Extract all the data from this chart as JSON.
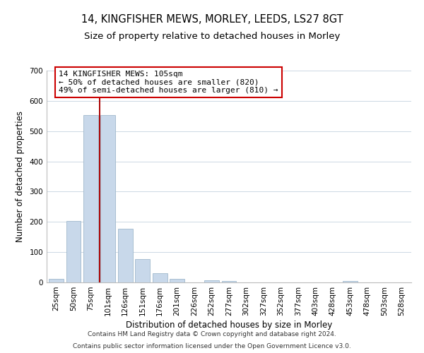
{
  "title": "14, KINGFISHER MEWS, MORLEY, LEEDS, LS27 8GT",
  "subtitle": "Size of property relative to detached houses in Morley",
  "xlabel": "Distribution of detached houses by size in Morley",
  "ylabel": "Number of detached properties",
  "bar_labels": [
    "25sqm",
    "50sqm",
    "75sqm",
    "101sqm",
    "126sqm",
    "151sqm",
    "176sqm",
    "201sqm",
    "226sqm",
    "252sqm",
    "277sqm",
    "302sqm",
    "327sqm",
    "352sqm",
    "377sqm",
    "403sqm",
    "428sqm",
    "453sqm",
    "478sqm",
    "503sqm",
    "528sqm"
  ],
  "bar_values": [
    12,
    202,
    553,
    553,
    178,
    78,
    30,
    12,
    0,
    8,
    5,
    0,
    0,
    0,
    0,
    0,
    0,
    5,
    0,
    0,
    0
  ],
  "bar_color": "#c8d8ea",
  "bar_edge_color": "#a0b8cc",
  "vline_x": 2.5,
  "vline_color": "#aa0000",
  "annotation_title": "14 KINGFISHER MEWS: 105sqm",
  "annotation_line1": "← 50% of detached houses are smaller (820)",
  "annotation_line2": "49% of semi-detached houses are larger (810) →",
  "annotation_box_color": "#ffffff",
  "annotation_box_edge_color": "#cc0000",
  "ylim": [
    0,
    700
  ],
  "yticks": [
    0,
    100,
    200,
    300,
    400,
    500,
    600,
    700
  ],
  "footer_line1": "Contains HM Land Registry data © Crown copyright and database right 2024.",
  "footer_line2": "Contains public sector information licensed under the Open Government Licence v3.0.",
  "background_color": "#ffffff",
  "grid_color": "#ccd8e4",
  "title_fontsize": 10.5,
  "subtitle_fontsize": 9.5,
  "footer_fontsize": 6.5,
  "axis_label_fontsize": 8.5,
  "tick_fontsize": 7.5,
  "annot_fontsize": 8.0
}
